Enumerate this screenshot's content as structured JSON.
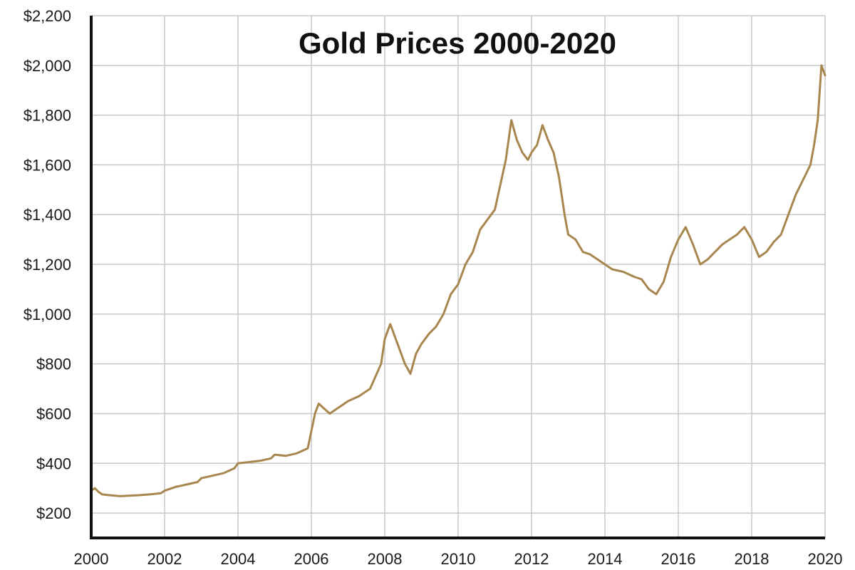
{
  "chart_data": {
    "type": "line",
    "title": "Gold Prices 2000-2020",
    "xlabel": "",
    "ylabel": "",
    "xlim": [
      2000,
      2020
    ],
    "ylim": [
      100,
      2200
    ],
    "x_ticks": [
      2000,
      2002,
      2004,
      2006,
      2008,
      2010,
      2012,
      2014,
      2016,
      2018,
      2020
    ],
    "x_tick_labels": [
      "2000",
      "2002",
      "2004",
      "2006",
      "2008",
      "2010",
      "2012",
      "2014",
      "2016",
      "2018",
      "2020"
    ],
    "y_ticks": [
      200,
      400,
      600,
      800,
      1000,
      1200,
      1400,
      1600,
      1800,
      2000,
      2200
    ],
    "y_tick_labels": [
      "$200",
      "$400",
      "$600",
      "$800",
      "$1,000",
      "$1,200",
      "$1,400",
      "$1,600",
      "$1,800",
      "$2,000",
      "$2,200"
    ],
    "grid": true,
    "legend": "none",
    "colors": {
      "line": "#A8864F",
      "axis": "#111111",
      "grid": "#c8c8c8"
    },
    "series": [
      {
        "x": [
          2000.0,
          2000.1,
          2000.2,
          2000.3,
          2000.5,
          2000.8,
          2001.0,
          2001.3,
          2001.6,
          2001.9,
          2002.0,
          2002.3,
          2002.6,
          2002.9,
          2003.0,
          2003.3,
          2003.6,
          2003.9,
          2004.0,
          2004.3,
          2004.6,
          2004.9,
          2005.0,
          2005.3,
          2005.6,
          2005.9,
          2006.0,
          2006.1,
          2006.2,
          2006.35,
          2006.5,
          2006.8,
          2007.0,
          2007.3,
          2007.6,
          2007.9,
          2008.0,
          2008.15,
          2008.35,
          2008.55,
          2008.7,
          2008.85,
          2009.0,
          2009.2,
          2009.4,
          2009.6,
          2009.8,
          2010.0,
          2010.2,
          2010.4,
          2010.6,
          2010.8,
          2011.0,
          2011.15,
          2011.3,
          2011.45,
          2011.6,
          2011.75,
          2011.9,
          2012.0,
          2012.15,
          2012.3,
          2012.45,
          2012.6,
          2012.75,
          2012.9,
          2013.0,
          2013.2,
          2013.4,
          2013.6,
          2013.8,
          2014.0,
          2014.2,
          2014.5,
          2014.8,
          2015.0,
          2015.2,
          2015.4,
          2015.6,
          2015.8,
          2016.0,
          2016.2,
          2016.4,
          2016.6,
          2016.8,
          2017.0,
          2017.2,
          2017.4,
          2017.6,
          2017.8,
          2018.0,
          2018.2,
          2018.4,
          2018.6,
          2018.8,
          2019.0,
          2019.2,
          2019.4,
          2019.6,
          2019.7,
          2019.8,
          2019.9,
          2020.0
        ],
        "y": [
          290,
          300,
          285,
          275,
          272,
          268,
          270,
          272,
          275,
          280,
          290,
          305,
          315,
          325,
          340,
          350,
          360,
          380,
          400,
          405,
          410,
          420,
          435,
          430,
          440,
          460,
          530,
          600,
          640,
          620,
          600,
          630,
          650,
          670,
          700,
          800,
          900,
          960,
          880,
          800,
          760,
          840,
          880,
          920,
          950,
          1000,
          1080,
          1120,
          1200,
          1250,
          1340,
          1380,
          1420,
          1520,
          1620,
          1780,
          1700,
          1650,
          1620,
          1650,
          1680,
          1760,
          1700,
          1650,
          1550,
          1400,
          1320,
          1300,
          1250,
          1240,
          1220,
          1200,
          1180,
          1170,
          1150,
          1140,
          1100,
          1080,
          1130,
          1230,
          1300,
          1350,
          1280,
          1200,
          1220,
          1250,
          1280,
          1300,
          1320,
          1350,
          1300,
          1230,
          1250,
          1290,
          1320,
          1400,
          1480,
          1540,
          1600,
          1680,
          1780,
          2000,
          1960
        ]
      }
    ]
  }
}
